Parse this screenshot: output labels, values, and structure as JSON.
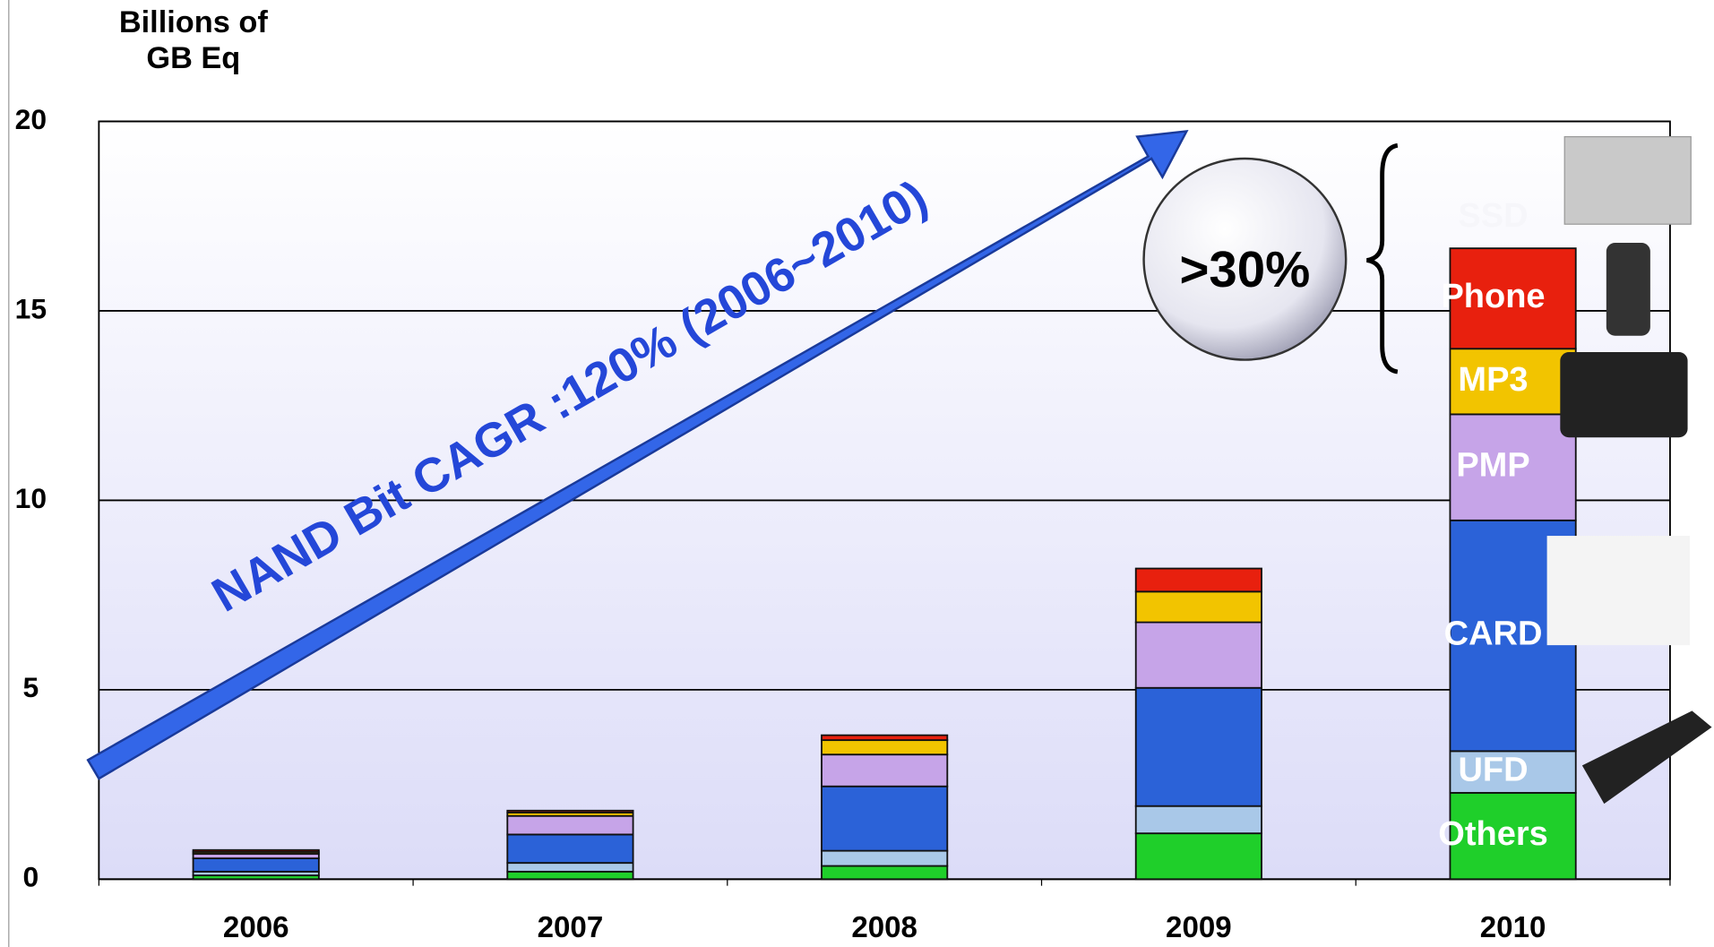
{
  "chart_data": {
    "type": "stacked_bar",
    "ylabel": [
      "Billions of",
      "GB Eq"
    ],
    "categories": [
      "2006",
      "2007",
      "2008",
      "2009",
      "2010"
    ],
    "series": [
      {
        "name": "Others",
        "color": "#1fcf2a",
        "values": [
          0.1,
          0.2,
          0.35,
          1.21,
          2.28
        ]
      },
      {
        "name": "UFD",
        "color": "#a9c8e8",
        "values": [
          0.1,
          0.23,
          0.4,
          0.72,
          1.1
        ]
      },
      {
        "name": "CARD",
        "color": "#2b62d8",
        "values": [
          0.35,
          0.75,
          1.7,
          3.12,
          6.09
        ]
      },
      {
        "name": "PMP",
        "color": "#c6a4e8",
        "values": [
          0.12,
          0.49,
          0.84,
          1.73,
          2.8
        ]
      },
      {
        "name": "MP3",
        "color": "#f2c400",
        "values": [
          0.05,
          0.09,
          0.38,
          0.81,
          1.73
        ]
      },
      {
        "name": "Phone",
        "color": "#e8200e",
        "values": [
          0.05,
          0.05,
          0.13,
          0.61,
          2.65
        ]
      }
    ],
    "ylim": [
      0,
      20
    ],
    "yticks": [
      0,
      5,
      10,
      15,
      20
    ],
    "grid": true,
    "annotations": {
      "ssd": "SSD",
      "share": ">30%",
      "cagr": "NAND Bit CAGR :120% (2006~2010)"
    }
  }
}
